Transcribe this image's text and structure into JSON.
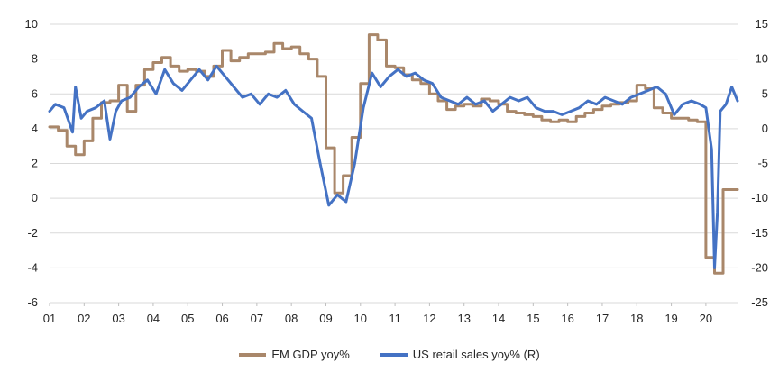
{
  "chart_data": {
    "type": "line",
    "title": "",
    "xlabel": "",
    "ylabel": "",
    "x_start": "2001-01",
    "x_end": "2020-12",
    "x_tick_labels": [
      "01",
      "02",
      "03",
      "04",
      "05",
      "06",
      "07",
      "08",
      "09",
      "10",
      "11",
      "12",
      "13",
      "14",
      "15",
      "16",
      "17",
      "18",
      "19",
      "20"
    ],
    "left_axis": {
      "ylim": [
        -6,
        10
      ],
      "ticks": [
        -6,
        -4,
        -2,
        0,
        2,
        4,
        6,
        8,
        10
      ]
    },
    "right_axis": {
      "ylim": [
        -25,
        15
      ],
      "ticks": [
        -25,
        -20,
        -15,
        -10,
        -5,
        0,
        5,
        10,
        15
      ]
    },
    "grid": "horizontal",
    "legend_position": "bottom",
    "series": [
      {
        "name": "EM GDP yoy%",
        "axis": "left",
        "color": "#a9876a",
        "x": [
          "2001-01",
          "2001-04",
          "2001-07",
          "2001-10",
          "2002-01",
          "2002-04",
          "2002-07",
          "2002-10",
          "2003-01",
          "2003-04",
          "2003-07",
          "2003-10",
          "2004-01",
          "2004-04",
          "2004-07",
          "2004-10",
          "2005-01",
          "2005-04",
          "2005-07",
          "2005-10",
          "2006-01",
          "2006-04",
          "2006-07",
          "2006-10",
          "2007-01",
          "2007-04",
          "2007-07",
          "2007-10",
          "2008-01",
          "2008-04",
          "2008-07",
          "2008-10",
          "2009-01",
          "2009-04",
          "2009-07",
          "2009-10",
          "2010-01",
          "2010-04",
          "2010-07",
          "2010-10",
          "2011-01",
          "2011-04",
          "2011-07",
          "2011-10",
          "2012-01",
          "2012-04",
          "2012-07",
          "2012-10",
          "2013-01",
          "2013-04",
          "2013-07",
          "2013-10",
          "2014-01",
          "2014-04",
          "2014-07",
          "2014-10",
          "2015-01",
          "2015-04",
          "2015-07",
          "2015-10",
          "2016-01",
          "2016-04",
          "2016-07",
          "2016-10",
          "2017-01",
          "2017-04",
          "2017-07",
          "2017-10",
          "2018-01",
          "2018-04",
          "2018-07",
          "2018-10",
          "2019-01",
          "2019-04",
          "2019-07",
          "2019-10",
          "2020-01",
          "2020-04",
          "2020-07",
          "2020-10"
        ],
        "values": [
          4.1,
          3.9,
          3.0,
          2.5,
          3.3,
          4.6,
          5.5,
          5.6,
          6.5,
          5.0,
          6.5,
          7.4,
          7.8,
          8.1,
          7.6,
          7.3,
          7.4,
          7.3,
          7.0,
          7.6,
          8.5,
          7.9,
          8.1,
          8.3,
          8.3,
          8.4,
          8.9,
          8.6,
          8.7,
          8.3,
          8.0,
          7.0,
          2.9,
          0.3,
          1.3,
          3.5,
          6.6,
          9.4,
          9.1,
          7.6,
          7.5,
          7.1,
          6.8,
          6.6,
          6.0,
          5.6,
          5.1,
          5.3,
          5.4,
          5.3,
          5.7,
          5.6,
          5.4,
          5.0,
          4.9,
          4.8,
          4.7,
          4.5,
          4.4,
          4.5,
          4.4,
          4.7,
          4.9,
          5.1,
          5.3,
          5.4,
          5.5,
          5.6,
          6.5,
          6.3,
          5.2,
          4.9,
          4.6,
          4.6,
          4.5,
          4.4,
          -3.4,
          -4.3,
          0.5,
          0.5
        ]
      },
      {
        "name": "US retail sales yoy% (R)",
        "axis": "right",
        "color": "#4472c4",
        "x": [
          "2001-01",
          "2001-03",
          "2001-06",
          "2001-09",
          "2001-10",
          "2001-12",
          "2002-02",
          "2002-05",
          "2002-08",
          "2002-10",
          "2002-12",
          "2003-02",
          "2003-05",
          "2003-08",
          "2003-11",
          "2004-02",
          "2004-05",
          "2004-08",
          "2004-11",
          "2005-02",
          "2005-05",
          "2005-08",
          "2005-11",
          "2006-02",
          "2006-05",
          "2006-08",
          "2006-11",
          "2007-02",
          "2007-05",
          "2007-08",
          "2007-11",
          "2008-02",
          "2008-05",
          "2008-08",
          "2008-11",
          "2009-02",
          "2009-05",
          "2009-08",
          "2009-11",
          "2010-02",
          "2010-05",
          "2010-08",
          "2010-11",
          "2011-02",
          "2011-05",
          "2011-08",
          "2011-11",
          "2012-02",
          "2012-05",
          "2012-08",
          "2012-11",
          "2013-02",
          "2013-05",
          "2013-08",
          "2013-11",
          "2014-02",
          "2014-05",
          "2014-08",
          "2014-11",
          "2015-02",
          "2015-05",
          "2015-08",
          "2015-11",
          "2016-02",
          "2016-05",
          "2016-08",
          "2016-11",
          "2017-02",
          "2017-05",
          "2017-08",
          "2017-11",
          "2018-02",
          "2018-05",
          "2018-08",
          "2018-11",
          "2019-02",
          "2019-05",
          "2019-08",
          "2019-11",
          "2020-01",
          "2020-03",
          "2020-04",
          "2020-05",
          "2020-06",
          "2020-08",
          "2020-10",
          "2020-12"
        ],
        "values": [
          2.5,
          3.5,
          3.0,
          -0.5,
          6.0,
          1.5,
          2.5,
          3.0,
          4.0,
          -1.5,
          2.5,
          4.0,
          4.5,
          6.0,
          7.0,
          5.0,
          8.5,
          6.5,
          5.5,
          7.0,
          8.5,
          7.0,
          9.0,
          7.5,
          6.0,
          4.5,
          5.0,
          3.5,
          5.0,
          4.5,
          5.5,
          3.5,
          2.5,
          1.5,
          -5.0,
          -11.0,
          -9.5,
          -10.5,
          -5.0,
          3.0,
          8.0,
          6.0,
          7.5,
          8.5,
          7.5,
          8.0,
          7.0,
          6.5,
          4.5,
          4.0,
          3.5,
          4.5,
          3.5,
          4.0,
          2.5,
          3.5,
          4.5,
          4.0,
          4.5,
          3.0,
          2.5,
          2.5,
          2.0,
          2.5,
          3.0,
          4.0,
          3.5,
          4.5,
          4.0,
          3.5,
          4.5,
          5.0,
          5.5,
          6.0,
          5.0,
          2.0,
          3.5,
          4.0,
          3.5,
          3.0,
          -3.0,
          -20.0,
          -12.0,
          2.5,
          3.5,
          6.0,
          4.0
        ]
      }
    ]
  },
  "legend": {
    "em_label": "EM GDP yoy%",
    "us_label": "US retail sales yoy% (R)"
  }
}
